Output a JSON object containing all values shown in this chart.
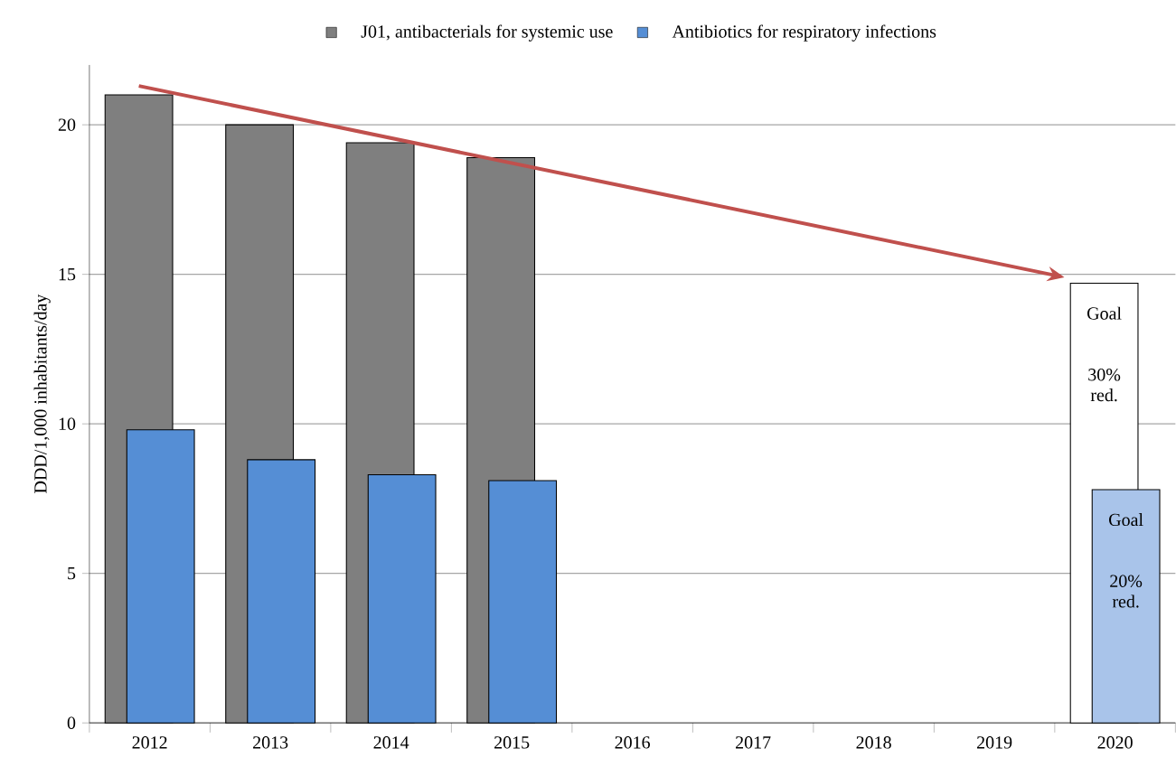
{
  "chart_data": {
    "type": "bar",
    "ylabel": "DDD/1,000 inhabitants/day",
    "categories": [
      "2012",
      "2013",
      "2014",
      "2015",
      "2016",
      "2017",
      "2018",
      "2019",
      "2020"
    ],
    "series": [
      {
        "name": "J01, antibacterials for systemic use",
        "color": "#7f7f7f",
        "colors": [
          "#7f7f7f",
          "#7f7f7f",
          "#7f7f7f",
          "#7f7f7f",
          "#7f7f7f",
          "#7f7f7f",
          "#7f7f7f",
          "#7f7f7f",
          "#ffffff"
        ],
        "values": [
          21.0,
          20.0,
          19.4,
          18.9,
          null,
          null,
          null,
          null,
          14.7
        ]
      },
      {
        "name": "Antibiotics for respiratory infections",
        "color": "#558ed5",
        "colors": [
          "#558ed5",
          "#558ed5",
          "#558ed5",
          "#558ed5",
          "#558ed5",
          "#558ed5",
          "#558ed5",
          "#558ed5",
          "#a9c4ea"
        ],
        "values": [
          9.8,
          8.8,
          8.3,
          8.1,
          null,
          null,
          null,
          null,
          7.8
        ]
      }
    ],
    "ylim": [
      0,
      22
    ],
    "yticks": [
      0,
      5,
      10,
      15,
      20
    ],
    "grid": "y",
    "legend": "top",
    "annotations": [
      "Goal",
      "30% red.",
      "Goal",
      "20% red."
    ]
  }
}
